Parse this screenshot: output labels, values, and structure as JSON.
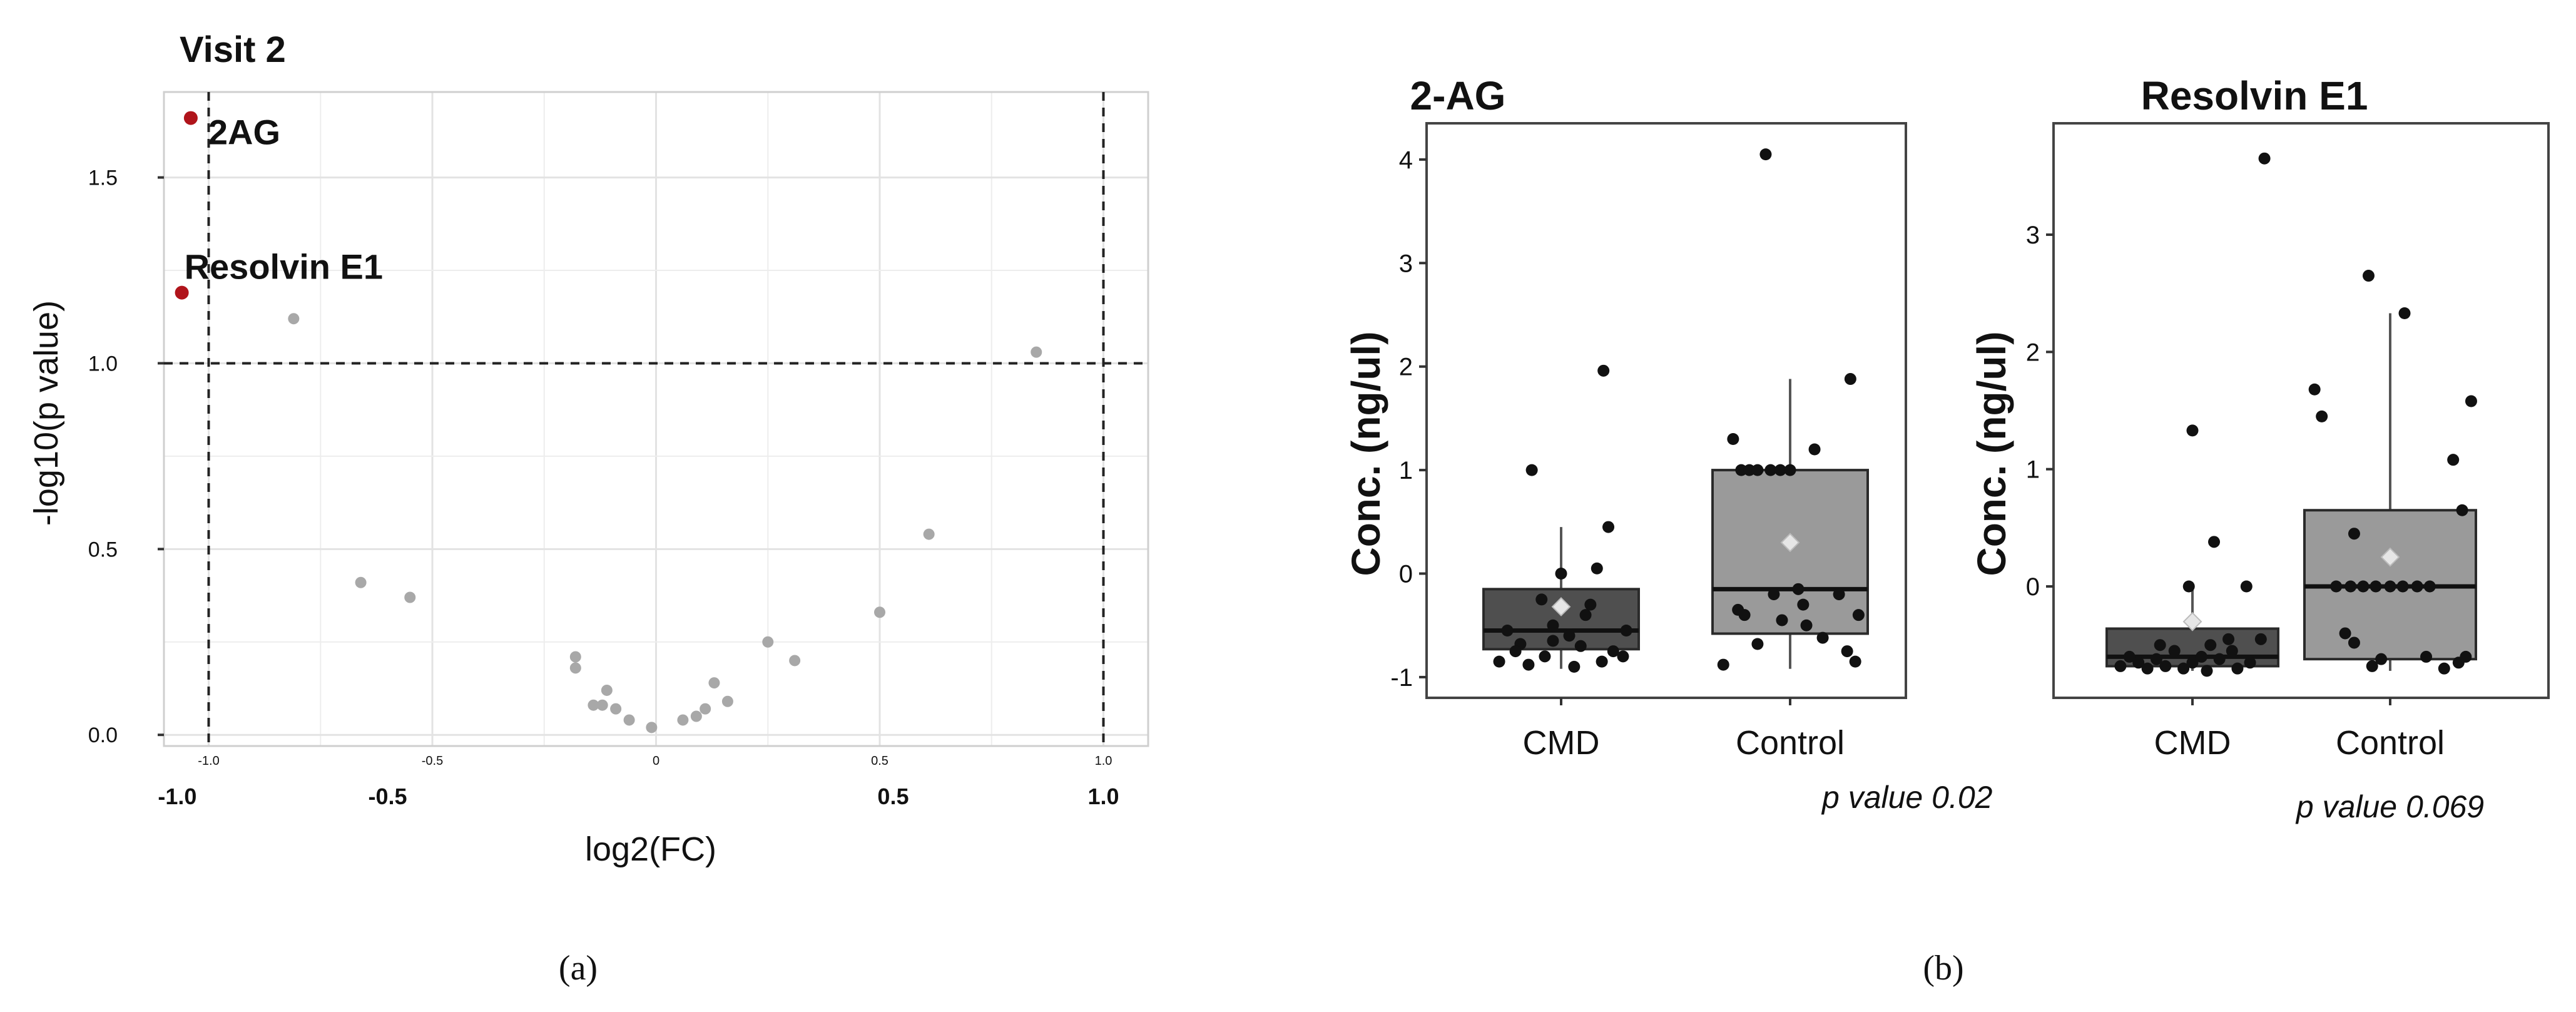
{
  "panel_a": {
    "title": "Visit 2",
    "caption": "(a)",
    "small_ticks": [
      "-1.0",
      "-0.5",
      "0",
      "0.5",
      "1.0"
    ]
  },
  "panel_b": {
    "caption": "(b)",
    "pvalue_2ag": "p value 0.02",
    "pvalue_resolvin": "p value 0.069"
  },
  "colors": {
    "highlight": "#b0141b",
    "point_gray": "#a8a8a8",
    "cmd_box": "#4f4f4f",
    "control_box": "#9a9a9a",
    "mean_marker": "#e6e6e6"
  },
  "chart_data": [
    {
      "type": "scatter",
      "title": "Visit 2",
      "xlabel": "log2(FC)",
      "ylabel": "-log10(p value)",
      "xlim": [
        -1.1,
        1.1
      ],
      "ylim": [
        -0.03,
        1.73
      ],
      "xticks": [
        "-1.0",
        "-0.5",
        "0.5",
        "1.0"
      ],
      "yticks": [
        "0.0",
        "0.5",
        "1.0",
        "1.5"
      ],
      "grid": true,
      "thresholds": {
        "x": [
          -1.0,
          1.0
        ],
        "y": 1.0
      },
      "points": [
        {
          "x": -1.04,
          "y": 1.66,
          "label": "2AG",
          "highlight": true
        },
        {
          "x": -1.06,
          "y": 1.19,
          "label": "Resolvin E1",
          "highlight": true
        },
        {
          "x": -0.81,
          "y": 1.12
        },
        {
          "x": 0.85,
          "y": 1.03
        },
        {
          "x": -0.66,
          "y": 0.41
        },
        {
          "x": -0.55,
          "y": 0.37
        },
        {
          "x": 0.61,
          "y": 0.54
        },
        {
          "x": 0.5,
          "y": 0.33
        },
        {
          "x": 0.25,
          "y": 0.25
        },
        {
          "x": 0.31,
          "y": 0.2
        },
        {
          "x": -0.18,
          "y": 0.21
        },
        {
          "x": -0.18,
          "y": 0.18
        },
        {
          "x": -0.14,
          "y": 0.08
        },
        {
          "x": -0.12,
          "y": 0.08
        },
        {
          "x": -0.11,
          "y": 0.12
        },
        {
          "x": -0.09,
          "y": 0.07
        },
        {
          "x": -0.06,
          "y": 0.04
        },
        {
          "x": -0.01,
          "y": 0.02
        },
        {
          "x": 0.06,
          "y": 0.04
        },
        {
          "x": 0.09,
          "y": 0.05
        },
        {
          "x": 0.11,
          "y": 0.07
        },
        {
          "x": 0.13,
          "y": 0.14
        },
        {
          "x": 0.16,
          "y": 0.09
        }
      ]
    },
    {
      "type": "box",
      "title": "2-AG",
      "ylabel": "Conc. (ng/ul)",
      "categories": [
        "CMD",
        "Control"
      ],
      "ylim": [
        -1.2,
        4.35
      ],
      "yticks": [
        -1,
        0,
        1,
        2,
        3,
        4
      ],
      "grid": false,
      "boxes": [
        {
          "name": "CMD",
          "q1": -0.73,
          "median": -0.55,
          "q3": -0.15,
          "whisker_low": -0.92,
          "whisker_high": 0.45,
          "mean": -0.32,
          "points": [
            [
              -0.18,
              1.0
            ],
            [
              0.26,
              1.96
            ],
            [
              -0.33,
              -0.55
            ],
            [
              -0.25,
              -0.68
            ],
            [
              -0.2,
              -0.88
            ],
            [
              -0.1,
              -0.8
            ],
            [
              -0.05,
              -0.5
            ],
            [
              0.05,
              -0.6
            ],
            [
              0.12,
              -0.7
            ],
            [
              0.18,
              -0.3
            ],
            [
              0.25,
              -0.85
            ],
            [
              0.32,
              -0.75
            ],
            [
              0.38,
              -0.8
            ],
            [
              -0.38,
              -0.85
            ],
            [
              0.08,
              -0.9
            ],
            [
              -0.12,
              -0.25
            ],
            [
              0.15,
              -0.4
            ],
            [
              0.29,
              0.45
            ],
            [
              -0.28,
              -0.75
            ],
            [
              0.4,
              -0.55
            ],
            [
              0.0,
              0.0
            ],
            [
              0.22,
              0.05
            ],
            [
              -0.05,
              -0.65
            ]
          ]
        },
        {
          "name": "Control",
          "q1": -0.58,
          "median": -0.15,
          "q3": 1.0,
          "whisker_low": -0.92,
          "whisker_high": 1.88,
          "mean": 0.3,
          "points": [
            [
              -0.15,
              4.05
            ],
            [
              0.37,
              1.88
            ],
            [
              0.15,
              1.2
            ],
            [
              -0.3,
              1.0
            ],
            [
              -0.25,
              1.0
            ],
            [
              -0.2,
              1.0
            ],
            [
              -0.12,
              1.0
            ],
            [
              -0.06,
              1.0
            ],
            [
              0.0,
              1.0
            ],
            [
              -0.35,
              1.3
            ],
            [
              -0.41,
              -0.88
            ],
            [
              -0.28,
              -0.4
            ],
            [
              -0.1,
              -0.2
            ],
            [
              0.05,
              -0.15
            ],
            [
              0.1,
              -0.5
            ],
            [
              0.2,
              -0.62
            ],
            [
              0.3,
              -0.2
            ],
            [
              0.35,
              -0.75
            ],
            [
              0.4,
              -0.85
            ],
            [
              -0.2,
              -0.68
            ],
            [
              0.08,
              -0.3
            ],
            [
              0.42,
              -0.4
            ],
            [
              -0.05,
              -0.45
            ],
            [
              -0.32,
              -0.35
            ]
          ]
        }
      ]
    },
    {
      "type": "box",
      "title": "Resolvin E1",
      "ylabel": "Conc. (ng/ul)",
      "categories": [
        "CMD",
        "Control"
      ],
      "ylim": [
        -0.95,
        3.95
      ],
      "yticks": [
        0,
        1,
        2,
        3
      ],
      "grid": false,
      "boxes": [
        {
          "name": "CMD",
          "q1": -0.68,
          "median": -0.6,
          "q3": -0.36,
          "whisker_low": -0.72,
          "whisker_high": 0.0,
          "mean": -0.3,
          "points": [
            [
              0.4,
              3.65
            ],
            [
              0.0,
              1.33
            ],
            [
              0.12,
              0.38
            ],
            [
              -0.02,
              0.0
            ],
            [
              0.3,
              0.0
            ],
            [
              -0.35,
              -0.6
            ],
            [
              -0.3,
              -0.65
            ],
            [
              -0.25,
              -0.7
            ],
            [
              -0.2,
              -0.62
            ],
            [
              -0.15,
              -0.68
            ],
            [
              -0.1,
              -0.55
            ],
            [
              -0.05,
              -0.7
            ],
            [
              0.0,
              -0.65
            ],
            [
              0.05,
              -0.6
            ],
            [
              0.1,
              -0.5
            ],
            [
              0.15,
              -0.62
            ],
            [
              0.2,
              -0.45
            ],
            [
              0.25,
              -0.7
            ],
            [
              0.32,
              -0.65
            ],
            [
              0.38,
              -0.45
            ],
            [
              -0.4,
              -0.68
            ],
            [
              -0.18,
              -0.5
            ],
            [
              0.08,
              -0.72
            ],
            [
              0.22,
              -0.55
            ]
          ]
        },
        {
          "name": "Control",
          "q1": -0.62,
          "median": 0.0,
          "q3": 0.65,
          "whisker_low": -0.72,
          "whisker_high": 2.33,
          "mean": 0.25,
          "points": [
            [
              -0.12,
              2.65
            ],
            [
              0.08,
              2.33
            ],
            [
              -0.42,
              1.68
            ],
            [
              -0.38,
              1.45
            ],
            [
              0.45,
              1.58
            ],
            [
              0.35,
              1.08
            ],
            [
              0.4,
              0.65
            ],
            [
              -0.2,
              0.45
            ],
            [
              -0.3,
              0.0
            ],
            [
              -0.22,
              0.0
            ],
            [
              -0.15,
              0.0
            ],
            [
              -0.08,
              0.0
            ],
            [
              0.0,
              0.0
            ],
            [
              0.07,
              0.0
            ],
            [
              0.15,
              0.0
            ],
            [
              0.22,
              0.0
            ],
            [
              -0.25,
              -0.4
            ],
            [
              -0.2,
              -0.48
            ],
            [
              -0.1,
              -0.68
            ],
            [
              -0.05,
              -0.62
            ],
            [
              0.2,
              -0.6
            ],
            [
              0.3,
              -0.7
            ],
            [
              0.38,
              -0.65
            ],
            [
              0.42,
              -0.6
            ]
          ]
        }
      ]
    }
  ]
}
